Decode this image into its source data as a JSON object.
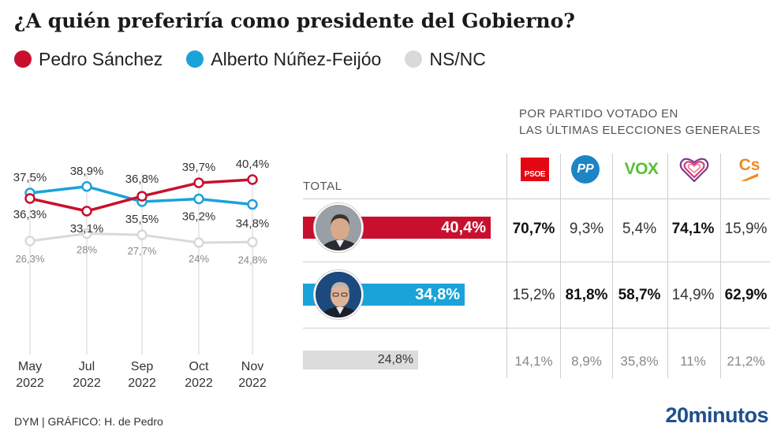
{
  "title": "¿A quién preferiría como presidente del Gobierno?",
  "legend": [
    {
      "label": "Pedro Sánchez",
      "color": "#c8102e"
    },
    {
      "label": "Alberto Núñez-Feijóo",
      "color": "#1aa3d9"
    },
    {
      "label": "NS/NC",
      "color": "#d9d9d9"
    }
  ],
  "chart_data": [
    {
      "type": "line",
      "categories": [
        "May\n2022",
        "Jul\n2022",
        "Sep\n2022",
        "Oct\n2022",
        "Nov\n2022"
      ],
      "series": [
        {
          "name": "Pedro Sánchez",
          "color": "#c8102e",
          "values": [
            36.3,
            33.1,
            36.8,
            39.7,
            40.4
          ],
          "labels": [
            "36,3%",
            "33,1%",
            "36,8%",
            "39,7%",
            "40,4%"
          ]
        },
        {
          "name": "Alberto Núñez-Feijóo",
          "color": "#1aa3d9",
          "values": [
            37.5,
            38.9,
            35.5,
            36.2,
            34.8
          ],
          "labels": [
            "37,5%",
            "38,9%",
            "35,5%",
            "36,2%",
            "34,8%"
          ]
        },
        {
          "name": "NS/NC",
          "color": "#d9d9d9",
          "values": [
            26.3,
            28,
            27.7,
            24,
            24.8
          ],
          "labels": [
            "26,3%",
            "28%",
            "27,7%",
            "24%",
            "24,8%"
          ]
        }
      ],
      "grid": "vertical"
    },
    {
      "type": "bar",
      "title": "TOTAL",
      "categories": [
        "Pedro Sánchez",
        "Alberto Núñez-Feijóo",
        "NS/NC"
      ],
      "values": [
        40.4,
        34.8,
        24.8
      ],
      "labels": [
        "40,4%",
        "34,8%",
        "24,8%"
      ],
      "colors": [
        "#c8102e",
        "#1aa3d9",
        "#d9d9d9"
      ]
    },
    {
      "type": "table",
      "title": "POR PARTIDO VOTADO EN LAS ÚLTIMAS ELECCIONES GENERALES",
      "columns": [
        "PSOE",
        "PP",
        "VOX",
        "Unidas Podemos",
        "Cs"
      ],
      "rows": [
        {
          "name": "Pedro Sánchez",
          "cells": [
            "70,7%",
            "9,3%",
            "5,4%",
            "74,1%",
            "15,9%"
          ],
          "bold": [
            true,
            false,
            false,
            true,
            false
          ]
        },
        {
          "name": "Alberto Núñez-Feijóo",
          "cells": [
            "15,2%",
            "81,8%",
            "58,7%",
            "14,9%",
            "62,9%"
          ],
          "bold": [
            false,
            true,
            true,
            false,
            true
          ]
        },
        {
          "name": "NS/NC",
          "cells": [
            "14,1%",
            "8,9%",
            "35,8%",
            "11%",
            "21,2%"
          ],
          "bold": [
            false,
            false,
            false,
            false,
            false
          ]
        }
      ]
    }
  ],
  "total_label": "TOTAL",
  "party_header": [
    "POR PARTIDO VOTADO EN",
    "LAS ÚLTIMAS ELECCIONES GENERALES"
  ],
  "party_logos": {
    "psoe": "PSOE",
    "pp": "PP",
    "vox": "VOX",
    "cs": "Cs"
  },
  "footer": {
    "source": "DYM   |  GRÁFICO: H. de Pedro",
    "brand_num": "20",
    "brand_word": "minutos"
  }
}
